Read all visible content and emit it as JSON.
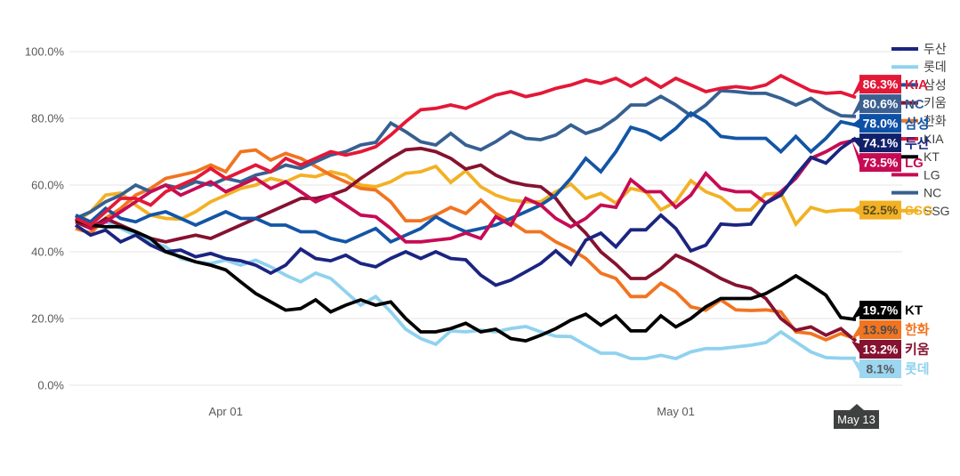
{
  "chart_data": {
    "type": "line",
    "title": "",
    "grid": "horizontal",
    "style": {
      "background": "#ffffff",
      "grid_color": "#e4e4e4",
      "axis_text_color": "#58595b",
      "legend_text_color": "#414042",
      "tooltip_bg": "#3f4040",
      "line_width": 3.8
    },
    "y_axis": {
      "range": [
        0,
        100
      ],
      "tick_values": [
        0,
        20,
        40,
        60,
        80,
        100
      ],
      "tick_labels": [
        "0.0%",
        "20.0%",
        "40.0%",
        "60.0%",
        "80.0%",
        "100.0%"
      ]
    },
    "x_axis": {
      "start_date": "Mar 22",
      "end_date": "May 13",
      "range_days": 52,
      "ticks": [
        {
          "label": "Apr 01",
          "day": 10
        },
        {
          "label": "May 01",
          "day": 40
        }
      ],
      "cursor_label": "May 13"
    },
    "legend": {
      "position": "right",
      "order": [
        "두산",
        "롯데",
        "삼성",
        "키움",
        "한화",
        "KIA",
        "KT",
        "LG",
        "NC",
        "SSG"
      ]
    },
    "series": [
      {
        "name": "롯데",
        "color": "#8fd2ef",
        "values": [
          51,
          48,
          49,
          47,
          45,
          43,
          41.5,
          38,
          37,
          36.5,
          37.5,
          36,
          37.5,
          35.5,
          33,
          31,
          33.6,
          32,
          28,
          24,
          26.6,
          22,
          16.8,
          14,
          12.3,
          16.3,
          16,
          16.5,
          16,
          17,
          17.6,
          16,
          14.7,
          14.6,
          12,
          9.6,
          9.6,
          8,
          8,
          9,
          8,
          10,
          11,
          11,
          11.5,
          12,
          12.8,
          16,
          13,
          10,
          8.3,
          8.1,
          8.1
        ]
      },
      {
        "name": "SSG",
        "color": "#f2b124",
        "values": [
          49,
          52,
          57,
          57.6,
          54,
          51,
          50,
          49.8,
          52,
          55,
          57,
          59,
          60,
          62,
          61,
          63,
          62.5,
          64,
          63,
          60,
          59.5,
          61,
          63.5,
          64,
          65.6,
          60.8,
          64.3,
          59.5,
          57,
          55.5,
          55,
          55,
          58,
          60.3,
          56,
          57.5,
          54.6,
          59,
          58,
          52.6,
          55,
          61.3,
          58,
          56.3,
          52.6,
          52.6,
          57.3,
          57.6,
          48.3,
          53.3,
          52,
          52.5,
          52.5
        ]
      },
      {
        "name": "한화",
        "color": "#f17420",
        "values": [
          47,
          45.6,
          50,
          53,
          57,
          59,
          62,
          63,
          64,
          66,
          64,
          70,
          70.5,
          67.5,
          69.5,
          68,
          65.6,
          63,
          61,
          59,
          58.5,
          55,
          49.3,
          49.3,
          51,
          53.3,
          51.5,
          55.5,
          51.5,
          49,
          46,
          46,
          43,
          40.8,
          38,
          33.6,
          32,
          26.6,
          26.6,
          30.6,
          28,
          23.5,
          22.5,
          25.6,
          22.6,
          22.4,
          22.6,
          22,
          16,
          15.5,
          13.6,
          15.5,
          13.9
        ]
      },
      {
        "name": "키움",
        "color": "#851230",
        "values": [
          49,
          47,
          50,
          48,
          46,
          44,
          43,
          44,
          45,
          44,
          46,
          48,
          50,
          52,
          54,
          56,
          56,
          57,
          58.6,
          62,
          65,
          68,
          70.6,
          71,
          70,
          68,
          64.8,
          66,
          63,
          61,
          60,
          59.5,
          56,
          50,
          45.6,
          40,
          36.3,
          32,
          32,
          35,
          39,
          37,
          34.6,
          32,
          30,
          29,
          26,
          20,
          16.5,
          17.5,
          15,
          17,
          13.2
        ]
      },
      {
        "name": "NC",
        "color": "#376091",
        "values": [
          50,
          52,
          55,
          57,
          60,
          58,
          60,
          59,
          61,
          60,
          62,
          61,
          63,
          64,
          66,
          65,
          67,
          69,
          70,
          72,
          72.8,
          78.6,
          76,
          73,
          72,
          75.5,
          72,
          70.6,
          73,
          76,
          74,
          73.6,
          75,
          78,
          75.5,
          77,
          80,
          84,
          84,
          86.6,
          84,
          80.8,
          84,
          88.3,
          88,
          87.5,
          87.5,
          86,
          84,
          86,
          83,
          80.8,
          80.6
        ]
      },
      {
        "name": "삼성",
        "color": "#1355a6",
        "values": [
          51,
          49,
          53,
          50,
          49,
          51,
          52,
          50,
          48,
          50,
          52,
          50,
          50,
          48,
          48,
          46,
          46,
          44,
          43,
          45,
          47,
          43,
          45,
          47,
          50.5,
          48,
          46,
          47,
          48,
          50,
          52,
          54,
          57,
          62,
          68,
          64,
          70,
          77.3,
          76,
          73.6,
          77,
          81.6,
          79,
          74.6,
          74,
          74,
          74,
          70,
          74.6,
          70,
          74,
          79,
          78
        ]
      },
      {
        "name": "LG",
        "color": "#c60b54",
        "values": [
          50,
          47,
          49,
          52,
          55,
          58,
          60,
          57,
          59,
          61,
          58,
          60,
          62,
          59,
          61,
          58,
          55,
          57,
          54,
          51,
          50.5,
          47,
          43,
          43,
          43.5,
          44,
          45.6,
          44,
          50.5,
          48,
          56,
          54,
          50,
          47.5,
          50,
          54,
          53.3,
          61.6,
          58,
          58,
          53.3,
          57,
          63.5,
          59,
          58,
          58,
          54.6,
          58,
          62,
          68,
          70,
          72.5,
          73.5
        ]
      },
      {
        "name": "두산",
        "color": "#1b2580",
        "values": [
          48,
          45,
          46.5,
          43,
          45,
          42,
          40,
          40.5,
          38.5,
          39.5,
          38,
          37.3,
          36,
          33.6,
          36,
          40.8,
          38,
          37.3,
          39,
          36.5,
          35.5,
          38,
          40,
          38,
          40,
          38,
          37.6,
          33,
          30,
          31.5,
          34,
          36.5,
          40.3,
          36.3,
          43.5,
          45.6,
          41.5,
          46.6,
          46.6,
          51,
          47,
          40.3,
          42,
          48.3,
          48,
          48.3,
          54.6,
          57,
          63,
          68.3,
          66.6,
          71,
          74.1
        ]
      },
      {
        "name": "KT",
        "color": "#000000",
        "values": [
          49.6,
          48,
          47.5,
          47.5,
          46,
          44,
          40,
          38.5,
          37,
          36,
          34.6,
          31,
          27.5,
          25,
          22.5,
          23,
          25.6,
          22,
          24,
          25.6,
          24,
          25,
          20,
          16,
          16,
          17,
          18.6,
          16,
          16.8,
          14,
          13.3,
          15,
          17,
          19.5,
          21.3,
          18,
          20.8,
          16.3,
          16.3,
          20.8,
          17.5,
          20,
          23.5,
          26,
          26,
          26,
          27.5,
          30,
          32.8,
          30,
          27,
          20.3,
          19.7
        ]
      },
      {
        "name": "KIA",
        "color": "#e31837",
        "values": [
          50,
          48,
          52,
          56,
          56,
          54,
          58,
          60,
          62,
          65,
          62,
          64,
          66,
          64,
          68,
          66,
          68,
          70,
          69,
          70,
          71.5,
          75,
          79,
          82.6,
          83,
          84,
          83,
          85,
          87,
          88,
          86.5,
          87.5,
          89,
          90,
          91.5,
          90.5,
          92,
          89.6,
          92,
          89.3,
          92,
          90,
          88,
          89,
          89.5,
          89,
          90,
          92.8,
          90.5,
          88.3,
          87.5,
          87.8,
          86.3
        ]
      }
    ],
    "final_labels": [
      {
        "team": "KIA",
        "value": 86.3,
        "text": "86.3%",
        "box_color": "#e31837",
        "value_text_color": "#ffffff",
        "name_color": "#e31837"
      },
      {
        "team": "NC",
        "value": 80.6,
        "text": "80.6%",
        "box_color": "#3c6090",
        "value_text_color": "#ffffff",
        "name_color": "#376091"
      },
      {
        "team": "삼성",
        "value": 78.0,
        "text": "78.0%",
        "box_color": "#0d51a7",
        "value_text_color": "#ffffff",
        "name_color": "#1355a6"
      },
      {
        "team": "두산",
        "value": 74.1,
        "text": "74.1%",
        "box_color": "#10216b",
        "value_text_color": "#ffffff",
        "name_color": "#1b2580"
      },
      {
        "team": "LG",
        "value": 73.5,
        "text": "73.5%",
        "box_color": "#c60b54",
        "value_text_color": "#ffffff",
        "name_color": "#c60b54"
      },
      {
        "team": "SSG",
        "value": 52.5,
        "text": "52.5%",
        "box_color": "#f2b124",
        "value_text_color": "#5a4b22",
        "name_color": "#f2b124"
      },
      {
        "team": "KT",
        "value": 19.7,
        "text": "19.7%",
        "box_color": "#000000",
        "value_text_color": "#ffffff",
        "name_color": "#000000"
      },
      {
        "team": "한화",
        "value": 13.9,
        "text": "13.9%",
        "box_color": "#f17420",
        "value_text_color": "#4d4d4d",
        "name_color": "#f17420"
      },
      {
        "team": "키움",
        "value": 13.2,
        "text": "13.2%",
        "box_color": "#851230",
        "value_text_color": "#ffffff",
        "name_color": "#851230"
      },
      {
        "team": "롯데",
        "value": 8.1,
        "text": "8.1%",
        "box_color": "#9cd6f0",
        "value_text_color": "#58595b",
        "name_color": "#8fd2ef"
      }
    ]
  }
}
